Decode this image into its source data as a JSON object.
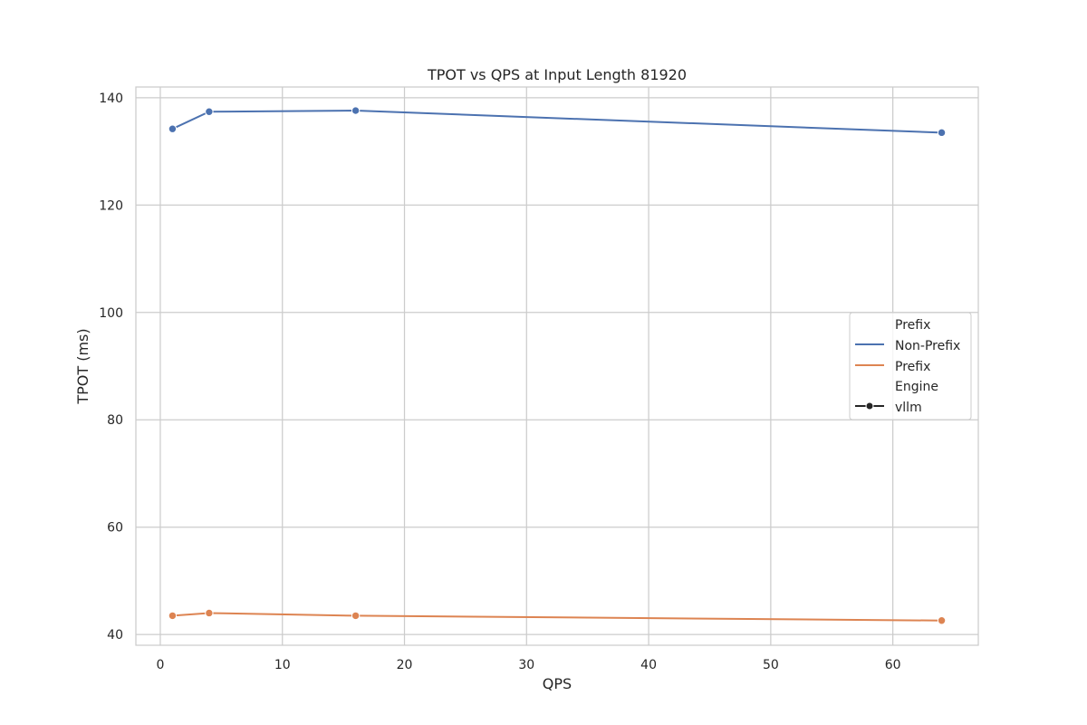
{
  "chart_data": {
    "type": "line",
    "title": "TPOT vs QPS at Input Length 81920",
    "xlabel": "QPS",
    "ylabel": "TPOT (ms)",
    "xlim": [
      -2,
      67
    ],
    "ylim": [
      38,
      142
    ],
    "xticks": [
      0,
      10,
      20,
      30,
      40,
      50,
      60
    ],
    "yticks": [
      40,
      60,
      80,
      100,
      120,
      140
    ],
    "grid": true,
    "legend_position": "center-right",
    "legend": {
      "hue_title": "Prefix",
      "style_title": "Engine",
      "style_entries": [
        {
          "label": "vllm",
          "marker": "circle"
        }
      ]
    },
    "series": [
      {
        "name": "Non-Prefix",
        "engine": "vllm",
        "color": "#4c72b0",
        "x": [
          1,
          4,
          16,
          64
        ],
        "y": [
          134.2,
          137.4,
          137.6,
          133.5
        ]
      },
      {
        "name": "Prefix",
        "engine": "vllm",
        "color": "#dd8452",
        "x": [
          1,
          4,
          16,
          64
        ],
        "y": [
          43.5,
          44.0,
          43.5,
          42.6
        ]
      }
    ],
    "colors": {
      "grid": "#cccccc",
      "axes_edge": "#cccccc",
      "text": "#262626",
      "marker_edge": "#ffffff",
      "legend_marker": "#262626"
    }
  }
}
